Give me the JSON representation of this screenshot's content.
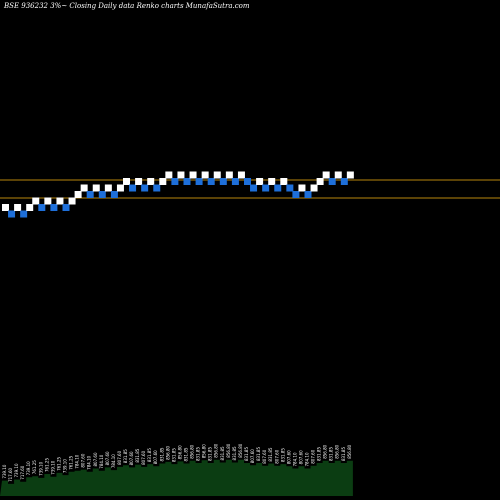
{
  "title": "BSE 936232  3%~  Closing Daily data  Renko  charts MunafaSutra.com",
  "colors": {
    "background": "#000000",
    "up_brick": "#ffffff",
    "down_brick": "#1e6fd9",
    "reference_line": "#b8860b",
    "volume_fill": "#0b3d12",
    "volume_label": "#ffffff"
  },
  "chart_data": {
    "type": "renko",
    "brick_percent": 3,
    "reference_levels": [
      174,
      154
    ],
    "bricks": [
      {
        "dir": "up",
        "level": 0
      },
      {
        "dir": "down",
        "level": -1
      },
      {
        "dir": "up",
        "level": 0
      },
      {
        "dir": "down",
        "level": -1
      },
      {
        "dir": "up",
        "level": 0
      },
      {
        "dir": "up",
        "level": 1
      },
      {
        "dir": "down",
        "level": 0
      },
      {
        "dir": "up",
        "level": 1
      },
      {
        "dir": "down",
        "level": 0
      },
      {
        "dir": "up",
        "level": 1
      },
      {
        "dir": "down",
        "level": 0
      },
      {
        "dir": "up",
        "level": 1
      },
      {
        "dir": "up",
        "level": 2
      },
      {
        "dir": "up",
        "level": 3
      },
      {
        "dir": "down",
        "level": 2
      },
      {
        "dir": "up",
        "level": 3
      },
      {
        "dir": "down",
        "level": 2
      },
      {
        "dir": "up",
        "level": 3
      },
      {
        "dir": "down",
        "level": 2
      },
      {
        "dir": "up",
        "level": 3
      },
      {
        "dir": "up",
        "level": 4
      },
      {
        "dir": "down",
        "level": 3
      },
      {
        "dir": "up",
        "level": 4
      },
      {
        "dir": "down",
        "level": 3
      },
      {
        "dir": "up",
        "level": 4
      },
      {
        "dir": "down",
        "level": 3
      },
      {
        "dir": "up",
        "level": 4
      },
      {
        "dir": "up",
        "level": 5
      },
      {
        "dir": "down",
        "level": 4
      },
      {
        "dir": "up",
        "level": 5
      },
      {
        "dir": "down",
        "level": 4
      },
      {
        "dir": "up",
        "level": 5
      },
      {
        "dir": "down",
        "level": 4
      },
      {
        "dir": "up",
        "level": 5
      },
      {
        "dir": "down",
        "level": 4
      },
      {
        "dir": "up",
        "level": 5
      },
      {
        "dir": "down",
        "level": 4
      },
      {
        "dir": "up",
        "level": 5
      },
      {
        "dir": "down",
        "level": 4
      },
      {
        "dir": "up",
        "level": 5
      },
      {
        "dir": "down",
        "level": 4
      },
      {
        "dir": "down",
        "level": 3
      },
      {
        "dir": "up",
        "level": 4
      },
      {
        "dir": "down",
        "level": 3
      },
      {
        "dir": "up",
        "level": 4
      },
      {
        "dir": "down",
        "level": 3
      },
      {
        "dir": "up",
        "level": 4
      },
      {
        "dir": "down",
        "level": 3
      },
      {
        "dir": "down",
        "level": 2
      },
      {
        "dir": "up",
        "level": 3
      },
      {
        "dir": "down",
        "level": 2
      },
      {
        "dir": "up",
        "level": 3
      },
      {
        "dir": "up",
        "level": 4
      },
      {
        "dir": "up",
        "level": 5
      },
      {
        "dir": "down",
        "level": 4
      },
      {
        "dir": "up",
        "level": 5
      },
      {
        "dir": "down",
        "level": 4
      },
      {
        "dir": "up",
        "level": 5
      }
    ],
    "volume": [
      {
        "value": 28,
        "label": "739.10"
      },
      {
        "value": 22,
        "label": "717.60"
      },
      {
        "value": 30,
        "label": "739.10"
      },
      {
        "value": 26,
        "label": "717.60"
      },
      {
        "value": 34,
        "label": "739.10"
      },
      {
        "value": 36,
        "label": "761.25"
      },
      {
        "value": 33,
        "label": "739.10"
      },
      {
        "value": 40,
        "label": "761.25"
      },
      {
        "value": 35,
        "label": "739.10"
      },
      {
        "value": 42,
        "label": "761.25"
      },
      {
        "value": 38,
        "label": "739.10"
      },
      {
        "value": 44,
        "label": "761.25"
      },
      {
        "value": 46,
        "label": "784.10"
      },
      {
        "value": 48,
        "label": "807.60"
      },
      {
        "value": 44,
        "label": "784.10"
      },
      {
        "value": 50,
        "label": "807.60"
      },
      {
        "value": 46,
        "label": "784.10"
      },
      {
        "value": 52,
        "label": "807.60"
      },
      {
        "value": 47,
        "label": "784.10"
      },
      {
        "value": 53,
        "label": "807.60"
      },
      {
        "value": 56,
        "label": "831.85"
      },
      {
        "value": 52,
        "label": "807.60"
      },
      {
        "value": 57,
        "label": "831.85"
      },
      {
        "value": 53,
        "label": "807.60"
      },
      {
        "value": 58,
        "label": "831.85"
      },
      {
        "value": 54,
        "label": "807.60"
      },
      {
        "value": 59,
        "label": "831.85"
      },
      {
        "value": 62,
        "label": "856.80"
      },
      {
        "value": 58,
        "label": "831.85"
      },
      {
        "value": 63,
        "label": "856.80"
      },
      {
        "value": 59,
        "label": "831.85"
      },
      {
        "value": 64,
        "label": "856.80"
      },
      {
        "value": 60,
        "label": "831.85"
      },
      {
        "value": 65,
        "label": "856.80"
      },
      {
        "value": 60,
        "label": "831.85"
      },
      {
        "value": 66,
        "label": "856.80"
      },
      {
        "value": 61,
        "label": "831.85"
      },
      {
        "value": 66,
        "label": "856.80"
      },
      {
        "value": 61,
        "label": "831.85"
      },
      {
        "value": 66,
        "label": "856.80"
      },
      {
        "value": 60,
        "label": "831.85"
      },
      {
        "value": 56,
        "label": "807.60"
      },
      {
        "value": 60,
        "label": "831.85"
      },
      {
        "value": 55,
        "label": "807.60"
      },
      {
        "value": 59,
        "label": "831.85"
      },
      {
        "value": 55,
        "label": "807.60"
      },
      {
        "value": 58,
        "label": "831.85"
      },
      {
        "value": 54,
        "label": "807.60"
      },
      {
        "value": 50,
        "label": "784.10"
      },
      {
        "value": 54,
        "label": "807.60"
      },
      {
        "value": 50,
        "label": "784.10"
      },
      {
        "value": 55,
        "label": "807.60"
      },
      {
        "value": 60,
        "label": "831.85"
      },
      {
        "value": 64,
        "label": "856.80"
      },
      {
        "value": 60,
        "label": "831.85"
      },
      {
        "value": 64,
        "label": "856.80"
      },
      {
        "value": 60,
        "label": "831.85"
      },
      {
        "value": 64,
        "label": "856.80"
      }
    ]
  }
}
